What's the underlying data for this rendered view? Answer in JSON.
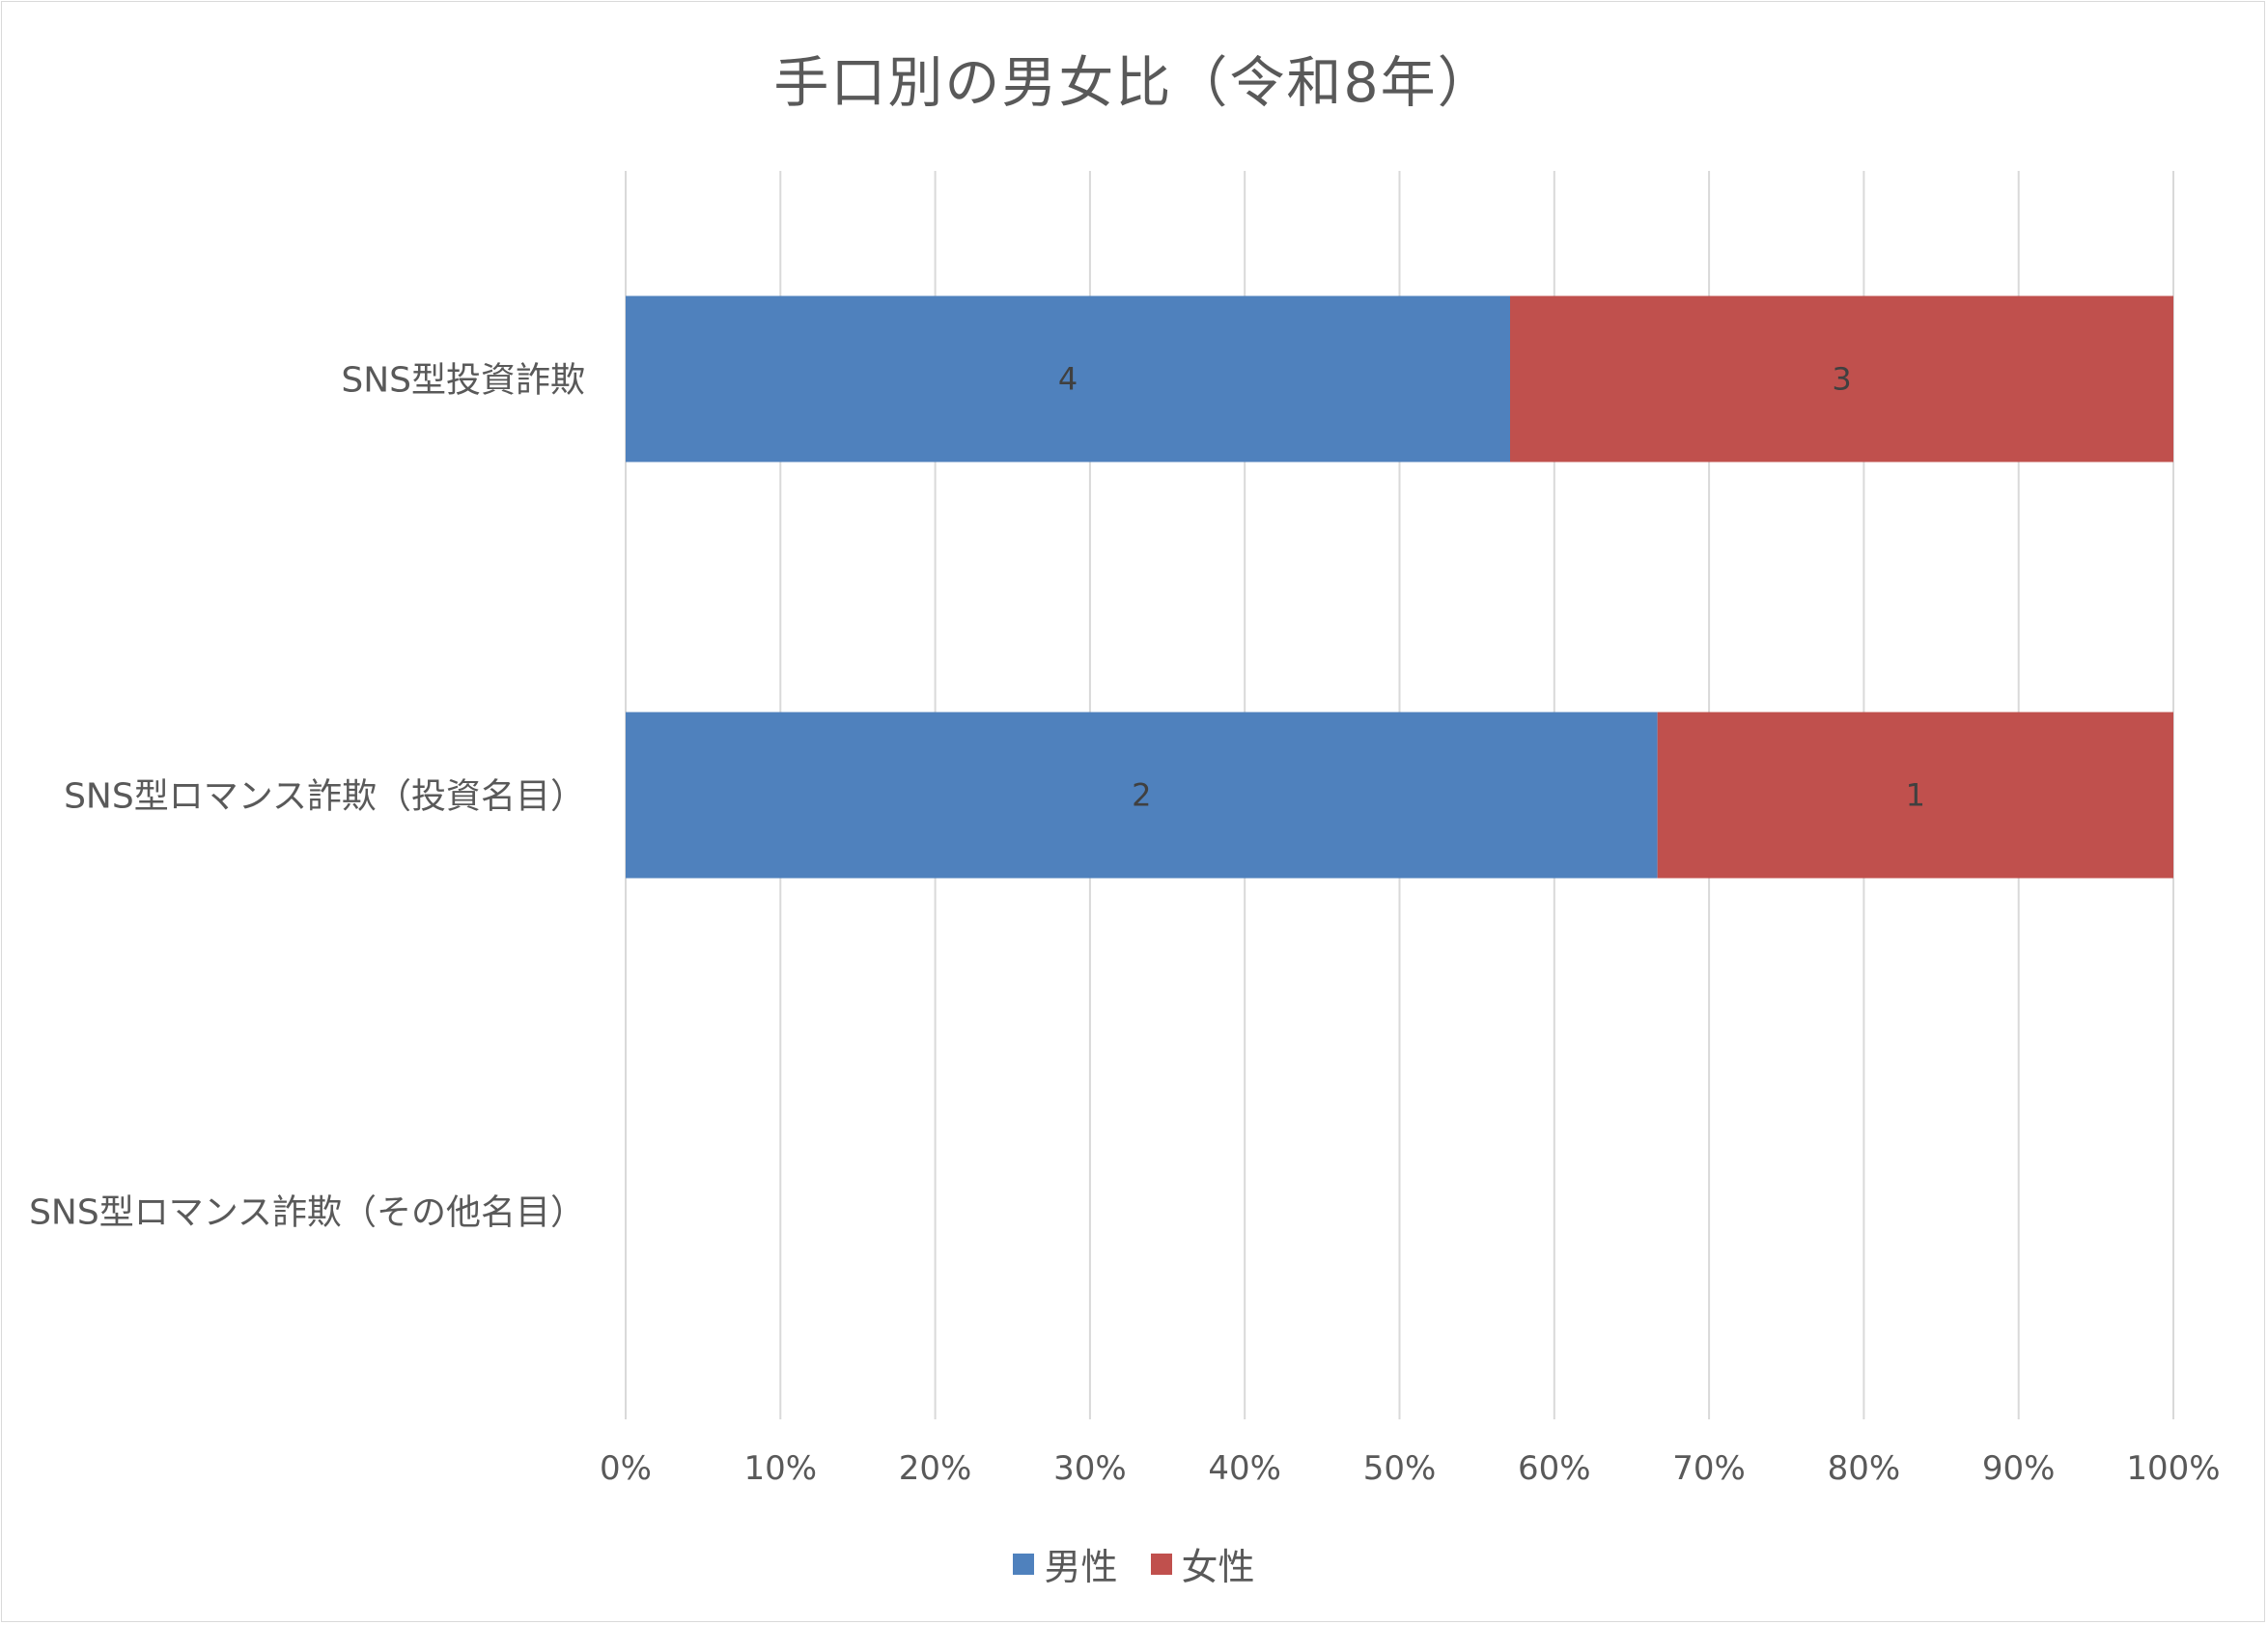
{
  "chart_data": {
    "type": "bar",
    "orientation": "horizontal",
    "stacked": "percent",
    "title": "手口別の男女比（令和8年）",
    "categories": [
      "SNS型投資詐欺",
      "SNS型ロマンス詐欺（投資名目）",
      "SNS型ロマンス詐欺（その他名目）"
    ],
    "series": [
      {
        "name": "男性",
        "values": [
          4,
          2,
          0
        ],
        "color": "#4f81bd"
      },
      {
        "name": "女性",
        "values": [
          3,
          1,
          0
        ],
        "color": "#c0504d"
      }
    ],
    "xlim": [
      0,
      100
    ],
    "x_ticks": [
      "0%",
      "10%",
      "20%",
      "30%",
      "40%",
      "50%",
      "60%",
      "70%",
      "80%",
      "90%",
      "100%"
    ],
    "grid": true,
    "legend_position": "bottom"
  }
}
